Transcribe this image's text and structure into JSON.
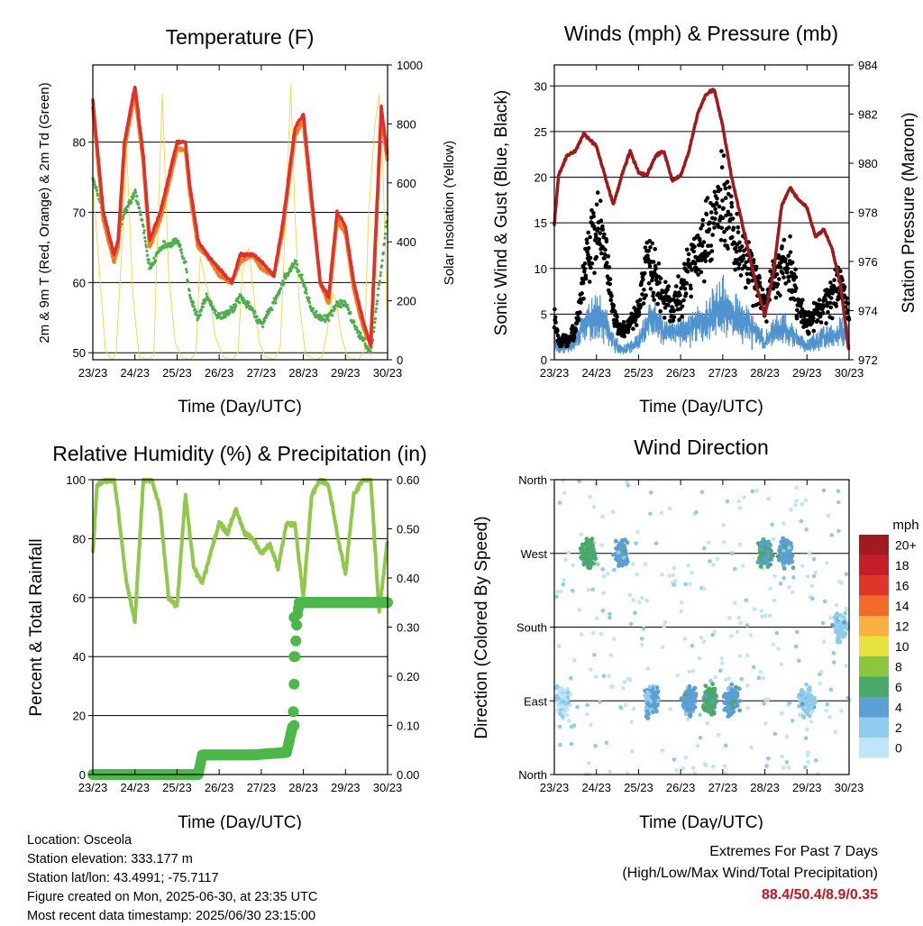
{
  "panels": {
    "temperature": {
      "title": "Temperature (F)",
      "xlabel": "Time (Day/UTC)",
      "ylabel_left": "2m & 9m T (Red, Orange) & 2m Td (Green)",
      "ylabel_right": "Solar Insolation (Yellow)",
      "left_ticks": [
        "50",
        "60",
        "70",
        "80"
      ],
      "right_ticks": [
        "0",
        "200",
        "400",
        "600",
        "800",
        "1000"
      ]
    },
    "winds": {
      "title": "Winds (mph) & Pressure (mb)",
      "xlabel": "Time (Day/UTC)",
      "ylabel_left": "Sonic Wind & Gust (Blue, Black)",
      "ylabel_right": "Station Pressure (Maroon)",
      "left_ticks": [
        "0",
        "5",
        "10",
        "15",
        "20",
        "25",
        "30"
      ],
      "right_ticks": [
        "972",
        "974",
        "976",
        "978",
        "980",
        "982",
        "984"
      ]
    },
    "humidity": {
      "title": "Relative Humidity (%) & Precipitation (in)",
      "xlabel": "Time (Day/UTC)",
      "ylabel_left": "Percent & Total Rainfall",
      "left_ticks": [
        "0",
        "20",
        "40",
        "60",
        "80",
        "100"
      ],
      "right_ticks": [
        "0.00",
        "0.10",
        "0.20",
        "0.30",
        "0.40",
        "0.50",
        "0.60"
      ]
    },
    "direction": {
      "title": "Wind Direction",
      "xlabel": "Time (Day/UTC)",
      "ylabel_left": "Direction (Colored By Speed)",
      "left_ticks": [
        "North",
        "East",
        "South",
        "West",
        "North"
      ],
      "legend_title": "mph",
      "legend_labels": [
        "0",
        "2",
        "4",
        "6",
        "8",
        "10",
        "12",
        "14",
        "16",
        "18",
        "20+"
      ],
      "legend_colors": [
        "#bfe6f7",
        "#8fcbec",
        "#5b9fd4",
        "#4aa86a",
        "#8cc63f",
        "#e8e33a",
        "#f9b040",
        "#f26b2a",
        "#e0352b",
        "#c31f27",
        "#a11b20"
      ]
    }
  },
  "x_ticks": [
    "23/23",
    "24/23",
    "25/23",
    "26/23",
    "27/23",
    "28/23",
    "29/23",
    "30/23"
  ],
  "colors": {
    "temp_2m": "#e0302a",
    "temp_9m": "#f47b20",
    "dewpoint": "#4cae4c",
    "solar": "#f5d33d",
    "wind": "#4f93d1",
    "gust": "#000000",
    "pressure": "#a01a1a",
    "rh": "#90c84a",
    "precip": "#4cb848"
  },
  "chart_data": [
    {
      "type": "line",
      "title": "Temperature (F)",
      "xlabel": "Time (Day/UTC)",
      "ylabel": "2m & 9m T (Red, Orange) & 2m Td (Green)",
      "y2label": "Solar Insolation (Yellow)",
      "x_days": [
        23.0,
        23.25,
        23.5,
        23.6,
        23.75,
        24.0,
        24.2,
        24.35,
        24.6,
        25.0,
        25.2,
        25.3,
        25.5,
        25.7,
        26.0,
        26.3,
        26.5,
        26.8,
        27.0,
        27.3,
        27.5,
        27.8,
        28.0,
        28.2,
        28.4,
        28.6,
        28.8,
        29.0,
        29.2,
        29.4,
        29.6,
        29.85,
        30.0
      ],
      "ylim": [
        49,
        91
      ],
      "y2lim": [
        0,
        1000
      ],
      "series": [
        {
          "name": "2m T",
          "values": [
            86,
            70,
            64,
            66,
            80,
            88,
            78,
            66,
            70,
            80,
            80,
            74,
            66,
            64,
            62,
            60,
            64,
            64,
            63,
            61,
            68,
            82,
            84,
            72,
            60,
            58,
            70,
            68,
            60,
            55,
            51,
            85,
            78
          ]
        },
        {
          "name": "9m T",
          "values": [
            85,
            69,
            63,
            65,
            79,
            87,
            77,
            65,
            69,
            79,
            79,
            73,
            65,
            64,
            61,
            60,
            63,
            64,
            62,
            61,
            67,
            81,
            83,
            71,
            60,
            57,
            69,
            67,
            59,
            54,
            51,
            84,
            77
          ]
        },
        {
          "name": "2m Td",
          "values": [
            75,
            70,
            63,
            66,
            70,
            73,
            68,
            62,
            65,
            66,
            63,
            58,
            55,
            58,
            55,
            56,
            58,
            56,
            54,
            57,
            60,
            63,
            60,
            56,
            55,
            55,
            57,
            57,
            54,
            52,
            50,
            62,
            70
          ]
        },
        {
          "name": "Solar",
          "axis": "y2",
          "x_days": [
            23.0,
            23.3,
            23.45,
            23.55,
            23.7,
            23.8,
            23.95,
            24.1,
            24.3,
            24.45,
            24.55,
            24.65,
            24.8,
            24.95,
            25.1,
            25.3,
            25.45,
            25.55,
            25.7,
            25.8,
            25.9,
            26.1,
            26.3,
            26.45,
            26.55,
            26.7,
            26.8,
            26.95,
            27.1,
            27.3,
            27.45,
            27.55,
            27.7,
            27.8,
            27.9,
            28.05,
            28.3,
            28.45,
            28.55,
            28.7,
            28.8,
            28.9,
            29.05,
            29.3,
            29.45,
            29.55,
            29.7,
            29.8,
            29.9,
            30.0
          ],
          "values": [
            600,
            30,
            0,
            20,
            400,
            720,
            220,
            10,
            0,
            15,
            480,
            900,
            300,
            60,
            10,
            0,
            20,
            350,
            250,
            200,
            80,
            10,
            0,
            25,
            300,
            380,
            250,
            60,
            10,
            0,
            40,
            380,
            930,
            500,
            200,
            20,
            0,
            10,
            90,
            230,
            180,
            80,
            10,
            0,
            30,
            500,
            800,
            900,
            600,
            80
          ]
        }
      ]
    },
    {
      "type": "line",
      "title": "Winds (mph) & Pressure (mb)",
      "xlabel": "Time (Day/UTC)",
      "ylabel": "Sonic Wind & Gust (Blue, Black)",
      "y2label": "Station Pressure (Maroon)",
      "x_days": [
        23.0,
        23.1,
        23.3,
        23.5,
        23.7,
        24.0,
        24.2,
        24.4,
        24.6,
        24.8,
        25.0,
        25.2,
        25.4,
        25.6,
        25.8,
        26.0,
        26.2,
        26.4,
        26.6,
        26.8,
        27.0,
        27.2,
        27.4,
        27.6,
        27.8,
        28.0,
        28.2,
        28.4,
        28.6,
        28.8,
        29.0,
        29.2,
        29.4,
        29.6,
        29.8,
        30.0
      ],
      "ylim": [
        0,
        32.3
      ],
      "y2lim": [
        972,
        984
      ],
      "series": [
        {
          "name": "Sonic Wind",
          "values": [
            2,
            1.5,
            1.5,
            2,
            3.5,
            5,
            4,
            2,
            1,
            1.5,
            2,
            4,
            4.5,
            3,
            3,
            3,
            3.5,
            4,
            4.5,
            5,
            6,
            5,
            4.5,
            4,
            3,
            2,
            3,
            3.5,
            3,
            2,
            1.5,
            2,
            2.5,
            2.5,
            3,
            3
          ]
        },
        {
          "name": "Gust",
          "values": [
            5,
            2,
            2,
            3,
            10,
            15,
            12,
            5,
            3,
            4,
            5,
            11,
            9,
            7,
            6,
            7,
            10,
            12,
            14,
            16,
            18,
            15,
            12,
            10,
            8,
            6,
            9,
            11,
            10,
            6,
            4,
            5,
            6,
            7,
            8,
            5
          ]
        },
        {
          "name": "Station Pressure",
          "axis": "y2",
          "values": [
            977.5,
            979.5,
            980.3,
            980.5,
            981.2,
            980.7,
            979.5,
            978.3,
            979.5,
            980.5,
            979.6,
            979.5,
            980.3,
            980.5,
            979.3,
            979.5,
            980.5,
            982,
            982.8,
            983,
            981.5,
            979.5,
            978,
            976.5,
            975,
            973.8,
            975.5,
            978.3,
            979,
            978.5,
            978.2,
            977,
            977.3,
            976.5,
            975,
            972.3
          ]
        }
      ]
    },
    {
      "type": "line",
      "title": "Relative Humidity (%) & Precipitation (in)",
      "xlabel": "Time (Day/UTC)",
      "ylabel": "Percent & Total Rainfall",
      "x_days": [
        23.0,
        23.1,
        23.3,
        23.5,
        23.6,
        23.8,
        24.0,
        24.2,
        24.4,
        24.6,
        24.8,
        25.0,
        25.2,
        25.4,
        25.6,
        25.8,
        26.0,
        26.2,
        26.4,
        26.6,
        26.8,
        27.0,
        27.2,
        27.4,
        27.6,
        27.8,
        28.0,
        28.2,
        28.4,
        28.6,
        28.8,
        29.0,
        29.2,
        29.4,
        29.6,
        29.8,
        30.0
      ],
      "ylim": [
        0,
        100
      ],
      "y2lim": [
        0,
        0.6
      ],
      "series": [
        {
          "name": "Relative Humidity",
          "values": [
            75,
            98,
            100,
            100,
            90,
            65,
            52,
            100,
            100,
            90,
            60,
            57,
            95,
            70,
            65,
            75,
            85,
            82,
            90,
            82,
            80,
            75,
            78,
            70,
            85,
            85,
            60,
            95,
            100,
            98,
            82,
            68,
            95,
            100,
            100,
            55,
            80
          ]
        },
        {
          "name": "Total Precipitation",
          "axis": "y2",
          "x_days": [
            23.0,
            25.5,
            25.6,
            26.8,
            27.6,
            27.75,
            27.8,
            27.85,
            27.9,
            28.0,
            30.0
          ],
          "values": [
            0,
            0,
            0.04,
            0.04,
            0.045,
            0.1,
            0.24,
            0.32,
            0.35,
            0.35,
            0.35
          ]
        }
      ]
    },
    {
      "type": "scatter",
      "title": "Wind Direction",
      "xlabel": "Time (Day/UTC)",
      "ylabel": "Direction (Colored By Speed)",
      "y_categories": [
        "North",
        "East",
        "South",
        "West",
        "North"
      ],
      "legend_title": "mph",
      "clusters": [
        {
          "x_day": 23.2,
          "direction": "East",
          "speed": 1
        },
        {
          "x_day": 23.8,
          "direction": "West",
          "speed": 6
        },
        {
          "x_day": 24.6,
          "direction": "West",
          "speed": 4
        },
        {
          "x_day": 25.3,
          "direction": "East",
          "speed": 3
        },
        {
          "x_day": 26.2,
          "direction": "East",
          "speed": 4
        },
        {
          "x_day": 26.7,
          "direction": "East",
          "speed": 6
        },
        {
          "x_day": 27.2,
          "direction": "East",
          "speed": 4
        },
        {
          "x_day": 28.0,
          "direction": "West",
          "speed": 5
        },
        {
          "x_day": 28.5,
          "direction": "West",
          "speed": 4
        },
        {
          "x_day": 29.0,
          "direction": "East",
          "speed": 2
        },
        {
          "x_day": 29.8,
          "direction": "South",
          "speed": 2
        }
      ]
    }
  ],
  "footer": {
    "location": "Location: Osceola",
    "elevation": "Station elevation: 333.177 m",
    "latlon": "Station lat/lon: 43.4991; -75.7117",
    "created": "Figure created on Mon, 2025-06-30, at 23:35 UTC",
    "recent": "Most recent data timestamp: 2025/06/30 23:15:00"
  },
  "extremes": {
    "title": "Extremes For Past 7 Days",
    "subtitle": "(High/Low/Max Wind/Total Precipitation)",
    "values": "88.4/50.4/8.9/0.35"
  }
}
